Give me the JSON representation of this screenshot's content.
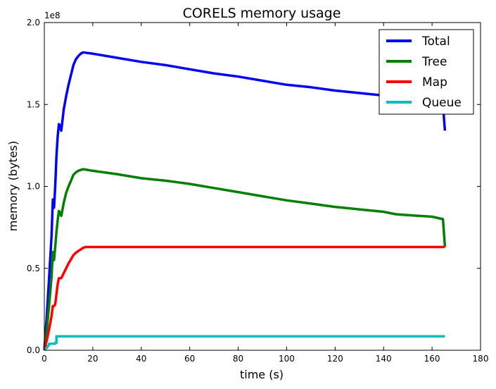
{
  "chart_data": {
    "type": "line",
    "title": "CORELS memory usage",
    "xlabel": "time (s)",
    "ylabel": "memory (bytes)",
    "y_offset_label": "1e8",
    "xlim": [
      0,
      180
    ],
    "ylim": [
      0,
      200000000
    ],
    "x_ticks": [
      0,
      20,
      40,
      60,
      80,
      100,
      120,
      140,
      160,
      180
    ],
    "x_tick_labels": [
      "0",
      "20",
      "40",
      "60",
      "80",
      "100",
      "120",
      "140",
      "160",
      "180"
    ],
    "y_ticks": [
      0,
      50000000,
      100000000,
      150000000,
      200000000
    ],
    "y_tick_labels": [
      "0.0",
      "0.5",
      "1.0",
      "1.5",
      "2.0"
    ],
    "grid": false,
    "legend_position": "top-right",
    "series": [
      {
        "name": "Total",
        "color": "#0000ff",
        "x": [
          0,
          1,
          2,
          3,
          3.5,
          4,
          4.5,
          5,
          5.5,
          6,
          6.5,
          7,
          8,
          9,
          10,
          11,
          12,
          13,
          14,
          15,
          16,
          17,
          20,
          30,
          40,
          50,
          60,
          70,
          80,
          90,
          100,
          110,
          120,
          130,
          140,
          150,
          160,
          164.5,
          165,
          165.3
        ],
        "y": [
          0,
          20000000,
          45000000,
          70000000,
          92000000,
          87000000,
          100000000,
          118000000,
          130000000,
          138000000,
          137000000,
          134000000,
          147000000,
          155000000,
          162000000,
          168000000,
          174000000,
          177500000,
          179500000,
          181000000,
          181800000,
          181600000,
          181000000,
          178500000,
          176000000,
          174000000,
          171500000,
          169000000,
          167000000,
          164500000,
          162000000,
          160500000,
          158500000,
          157000000,
          155500000,
          154000000,
          153000000,
          152000000,
          140000000,
          134000000
        ]
      },
      {
        "name": "Tree",
        "color": "#008000",
        "x": [
          0,
          1,
          2,
          3,
          3.5,
          4,
          4.5,
          5,
          5.5,
          6,
          6.5,
          7,
          8,
          9,
          10,
          11,
          12,
          13,
          14,
          15,
          16,
          17,
          20,
          30,
          40,
          50,
          60,
          70,
          80,
          90,
          100,
          110,
          120,
          130,
          140,
          145,
          150,
          155,
          160,
          164.5,
          165,
          165.3
        ],
        "y": [
          0,
          12000000,
          28000000,
          45000000,
          60000000,
          55000000,
          63000000,
          72000000,
          79000000,
          85000000,
          84000000,
          82000000,
          90000000,
          96000000,
          100000000,
          103500000,
          107000000,
          108500000,
          109500000,
          110000000,
          110500000,
          110300000,
          109500000,
          107500000,
          105000000,
          103500000,
          101500000,
          99000000,
          96500000,
          94000000,
          91500000,
          89500000,
          87500000,
          86000000,
          84500000,
          83000000,
          82500000,
          82000000,
          81500000,
          80000000,
          70000000,
          63000000
        ]
      },
      {
        "name": "Map",
        "color": "#ff0000",
        "x": [
          0,
          1,
          2,
          3,
          3.5,
          4,
          4.5,
          5,
          5.5,
          6,
          6.5,
          7,
          8,
          9,
          10,
          11,
          12,
          13,
          14,
          15,
          16,
          17,
          30,
          60,
          90,
          120,
          150,
          165.3
        ],
        "y": [
          0,
          6000000,
          13000000,
          21000000,
          27000000,
          27000000,
          28000000,
          34000000,
          40000000,
          44000000,
          44000000,
          44000000,
          47000000,
          50000000,
          53000000,
          55500000,
          58000000,
          59500000,
          60500000,
          61500000,
          62500000,
          63000000,
          63000000,
          63000000,
          63000000,
          63000000,
          63000000,
          63000000
        ]
      },
      {
        "name": "Queue",
        "color": "#00bfbf",
        "x": [
          0,
          1,
          2,
          2,
          4.5,
          4.5,
          5,
          5,
          165.3
        ],
        "y": [
          0,
          1500000,
          3500000,
          4000000,
          4000000,
          4500000,
          4500000,
          8500000,
          8500000
        ]
      }
    ]
  }
}
